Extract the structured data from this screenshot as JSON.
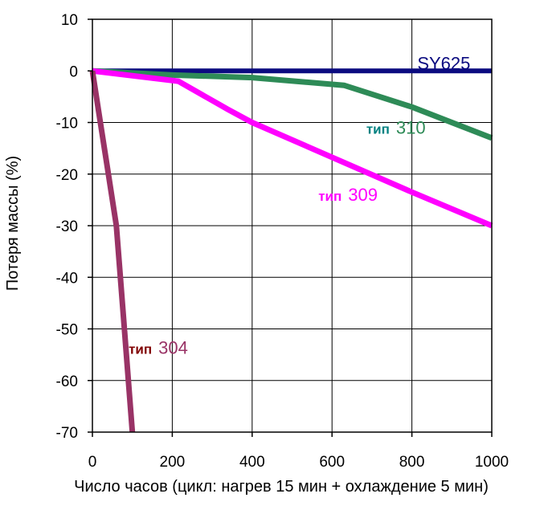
{
  "chart_data": {
    "type": "line",
    "title": "",
    "xlabel": "Число часов (цикл: нагрев 15 мин + охлаждение 5 мин)",
    "ylabel": "Потеря массы (%)",
    "xlim": [
      0,
      1000
    ],
    "ylim": [
      -70,
      10
    ],
    "x_ticks": [
      0,
      200,
      400,
      600,
      800,
      1000
    ],
    "y_ticks": [
      10,
      0,
      -10,
      -20,
      -30,
      -40,
      -50,
      -60,
      -70
    ],
    "grid": true,
    "legend": "none",
    "series": [
      {
        "name": "SY625",
        "color": "#0b0b80",
        "x": [
          0,
          1000
        ],
        "y": [
          0,
          0
        ],
        "labels": [
          {
            "parts": [
              "SY625"
            ],
            "colors": [
              "#0b0b80"
            ]
          }
        ]
      },
      {
        "name": "тип 310",
        "color": "#2e8b57",
        "x": [
          0,
          200,
          400,
          630,
          800,
          1000
        ],
        "y": [
          0,
          -0.8,
          -1.3,
          -2.8,
          -7,
          -13
        ],
        "labels": [
          {
            "parts": [
              "тип",
              "310"
            ],
            "colors": [
              "#008080",
              "#2e8b57"
            ]
          }
        ]
      },
      {
        "name": "тип 309",
        "color": "#ff00ff",
        "x": [
          0,
          215,
          340,
          400,
          800,
          1000
        ],
        "y": [
          0,
          -2,
          -7.5,
          -10,
          -23.5,
          -30
        ],
        "labels": [
          {
            "parts": [
              "тип",
              "309"
            ],
            "colors": [
              "#ff00ff",
              "#ff00ff"
            ]
          }
        ]
      },
      {
        "name": "тип 304",
        "color": "#993366",
        "x": [
          0,
          20,
          40,
          60,
          80,
          100
        ],
        "y": [
          0,
          -10,
          -20,
          -30,
          -50,
          -70
        ],
        "labels": [
          {
            "parts": [
              "тип",
              "304"
            ],
            "colors": [
              "#800000",
              "#993366"
            ]
          }
        ]
      }
    ]
  }
}
